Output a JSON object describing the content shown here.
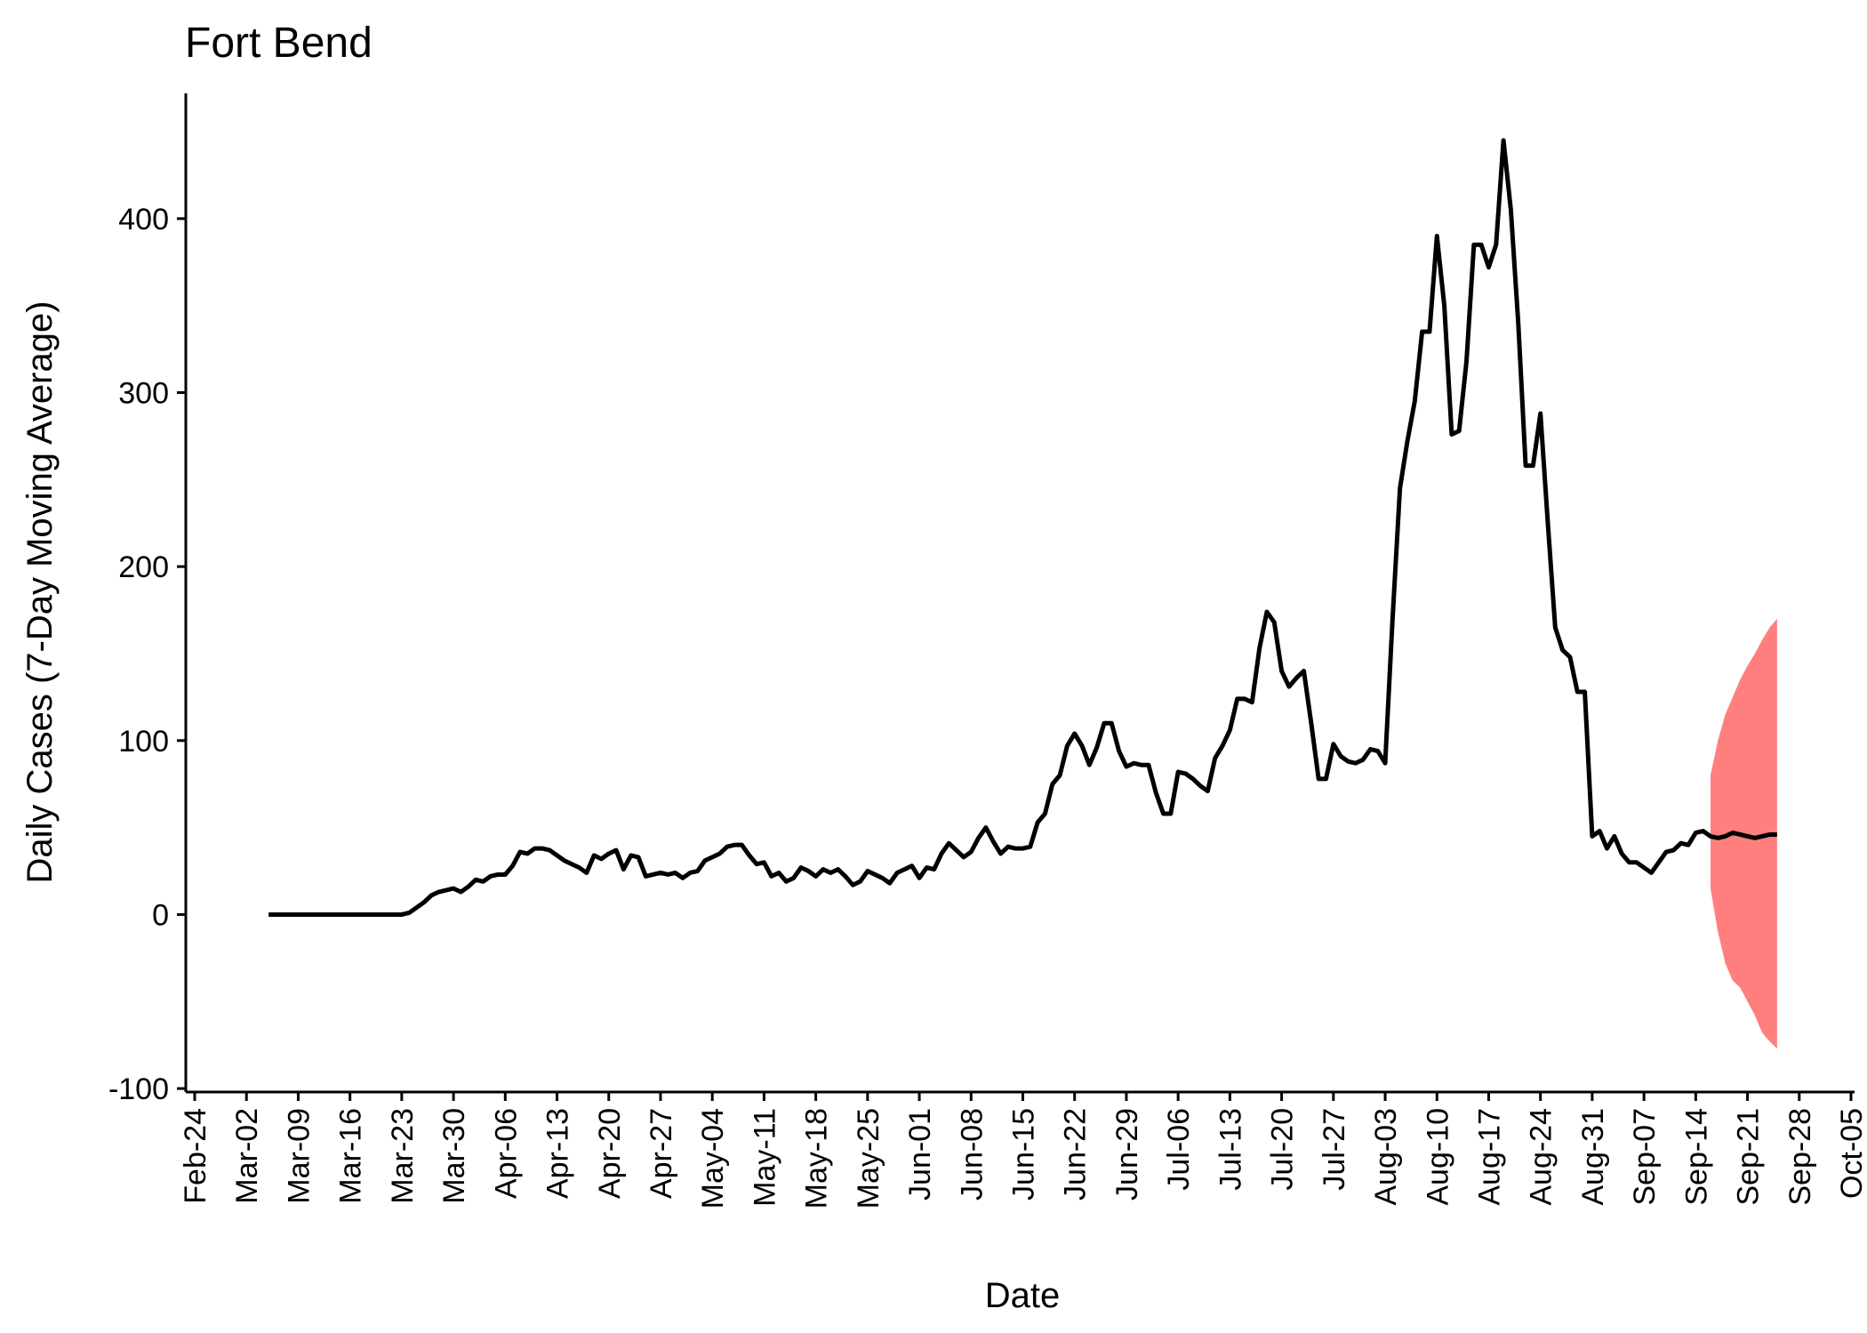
{
  "chart_data": {
    "type": "line",
    "title": "Fort Bend",
    "xlabel": "Date",
    "ylabel": "Daily Cases (7-Day Moving Average)",
    "x": [
      "Mar-05",
      "Mar-06",
      "Mar-07",
      "Mar-08",
      "Mar-09",
      "Mar-10",
      "Mar-11",
      "Mar-12",
      "Mar-13",
      "Mar-14",
      "Mar-15",
      "Mar-16",
      "Mar-17",
      "Mar-18",
      "Mar-19",
      "Mar-20",
      "Mar-21",
      "Mar-22",
      "Mar-23",
      "Mar-24",
      "Mar-25",
      "Mar-26",
      "Mar-27",
      "Mar-28",
      "Mar-29",
      "Mar-30",
      "Mar-31",
      "Apr-01",
      "Apr-02",
      "Apr-03",
      "Apr-04",
      "Apr-05",
      "Apr-06",
      "Apr-07",
      "Apr-08",
      "Apr-09",
      "Apr-10",
      "Apr-11",
      "Apr-12",
      "Apr-13",
      "Apr-14",
      "Apr-15",
      "Apr-16",
      "Apr-17",
      "Apr-18",
      "Apr-19",
      "Apr-20",
      "Apr-21",
      "Apr-22",
      "Apr-23",
      "Apr-24",
      "Apr-25",
      "Apr-26",
      "Apr-27",
      "Apr-28",
      "Apr-29",
      "Apr-30",
      "May-01",
      "May-02",
      "May-03",
      "May-04",
      "May-05",
      "May-06",
      "May-07",
      "May-08",
      "May-09",
      "May-10",
      "May-11",
      "May-12",
      "May-13",
      "May-14",
      "May-15",
      "May-16",
      "May-17",
      "May-18",
      "May-19",
      "May-20",
      "May-21",
      "May-22",
      "May-23",
      "May-24",
      "May-25",
      "May-26",
      "May-27",
      "May-28",
      "May-29",
      "May-30",
      "May-31",
      "Jun-01",
      "Jun-02",
      "Jun-03",
      "Jun-04",
      "Jun-05",
      "Jun-06",
      "Jun-07",
      "Jun-08",
      "Jun-09",
      "Jun-10",
      "Jun-11",
      "Jun-12",
      "Jun-13",
      "Jun-14",
      "Jun-15",
      "Jun-16",
      "Jun-17",
      "Jun-18",
      "Jun-19",
      "Jun-20",
      "Jun-21",
      "Jun-22",
      "Jun-23",
      "Jun-24",
      "Jun-25",
      "Jun-26",
      "Jun-27",
      "Jun-28",
      "Jun-29",
      "Jun-30",
      "Jul-01",
      "Jul-02",
      "Jul-03",
      "Jul-04",
      "Jul-05",
      "Jul-06",
      "Jul-07",
      "Jul-08",
      "Jul-09",
      "Jul-10",
      "Jul-11",
      "Jul-12",
      "Jul-13",
      "Jul-14",
      "Jul-15",
      "Jul-16",
      "Jul-17",
      "Jul-18",
      "Jul-19",
      "Jul-20",
      "Jul-21",
      "Jul-22",
      "Jul-23",
      "Jul-24",
      "Jul-25",
      "Jul-26",
      "Jul-27",
      "Jul-28",
      "Jul-29",
      "Jul-30",
      "Jul-31",
      "Aug-01",
      "Aug-02",
      "Aug-03",
      "Aug-04",
      "Aug-05",
      "Aug-06",
      "Aug-07",
      "Aug-08",
      "Aug-09",
      "Aug-10",
      "Aug-11",
      "Aug-12",
      "Aug-13",
      "Aug-14",
      "Aug-15",
      "Aug-16",
      "Aug-17",
      "Aug-18",
      "Aug-19",
      "Aug-20",
      "Aug-21",
      "Aug-22",
      "Aug-23",
      "Aug-24",
      "Aug-25",
      "Aug-26",
      "Aug-27",
      "Aug-28",
      "Aug-29",
      "Aug-30",
      "Aug-31",
      "Sep-01",
      "Sep-02",
      "Sep-03",
      "Sep-04",
      "Sep-05",
      "Sep-06",
      "Sep-07",
      "Sep-08",
      "Sep-09",
      "Sep-10",
      "Sep-11",
      "Sep-12",
      "Sep-13",
      "Sep-14",
      "Sep-15",
      "Sep-16",
      "Sep-17",
      "Sep-18",
      "Sep-19",
      "Sep-20",
      "Sep-21",
      "Sep-22",
      "Sep-23",
      "Sep-24",
      "Sep-25"
    ],
    "series": [
      {
        "color": "#000000",
        "values": [
          0,
          0,
          0,
          0,
          0,
          0,
          0,
          0,
          0,
          0,
          0,
          0,
          0,
          0,
          0,
          0,
          0,
          0,
          0,
          1,
          4,
          7,
          11,
          13,
          14,
          15,
          13,
          16,
          20,
          19,
          22,
          23,
          23,
          28,
          36,
          35,
          38,
          38,
          37,
          34,
          31,
          29,
          27,
          24,
          34,
          32,
          35,
          37,
          26,
          34,
          33,
          22,
          23,
          24,
          23,
          24,
          21,
          24,
          25,
          31,
          33,
          35,
          39,
          40,
          40,
          34,
          29,
          30,
          22,
          24,
          19,
          21,
          27,
          25,
          22,
          26,
          24,
          26,
          22,
          17,
          19,
          25,
          23,
          21,
          18,
          24,
          26,
          28,
          21,
          27,
          26,
          35,
          41,
          37,
          33,
          36,
          44,
          50,
          42,
          35,
          39,
          38,
          38,
          39,
          53,
          58,
          75,
          80,
          97,
          104,
          97,
          86,
          96,
          110,
          110,
          94,
          85,
          87,
          86,
          86,
          70,
          58,
          58,
          82,
          81,
          78,
          74,
          71,
          90,
          97,
          106,
          124,
          124,
          122,
          153,
          174,
          168,
          140,
          131,
          136,
          140,
          110,
          78,
          78,
          98,
          91,
          88,
          87,
          89,
          95,
          94,
          87,
          170,
          245,
          272,
          295,
          335,
          335,
          390,
          350,
          276,
          278,
          318,
          385,
          385,
          372,
          385,
          445,
          405,
          340,
          258,
          258,
          288,
          225,
          165,
          152,
          148,
          128,
          128,
          45,
          48,
          38,
          45,
          35,
          30,
          30,
          27,
          24,
          30,
          36,
          37,
          41,
          40,
          47,
          48,
          45,
          44,
          45,
          47,
          46,
          45,
          44,
          45,
          46,
          46
        ]
      }
    ],
    "ribbon": {
      "color": "#ff7f7f",
      "x": [
        "Sep-16",
        "Sep-17",
        "Sep-18",
        "Sep-19",
        "Sep-20",
        "Sep-21",
        "Sep-22",
        "Sep-23",
        "Sep-24",
        "Sep-25"
      ],
      "lower": [
        15,
        -10,
        -28,
        -38,
        -42,
        -50,
        -58,
        -68,
        -73,
        -77
      ],
      "upper": [
        80,
        100,
        115,
        125,
        135,
        143,
        150,
        158,
        165,
        170
      ]
    },
    "xlim": [
      "Feb-24",
      "Oct-05"
    ],
    "xticks": [
      "Feb-24",
      "Mar-02",
      "Mar-09",
      "Mar-16",
      "Mar-23",
      "Mar-30",
      "Apr-06",
      "Apr-13",
      "Apr-20",
      "Apr-27",
      "May-04",
      "May-11",
      "May-18",
      "May-25",
      "Jun-01",
      "Jun-08",
      "Jun-15",
      "Jun-22",
      "Jun-29",
      "Jul-06",
      "Jul-13",
      "Jul-20",
      "Jul-27",
      "Aug-03",
      "Aug-10",
      "Aug-17",
      "Aug-24",
      "Aug-31",
      "Sep-07",
      "Sep-14",
      "Sep-21",
      "Sep-28",
      "Oct-05"
    ],
    "ylim": [
      -102,
      472
    ],
    "yticks": [
      -100,
      0,
      100,
      200,
      300,
      400
    ],
    "grid": false
  }
}
